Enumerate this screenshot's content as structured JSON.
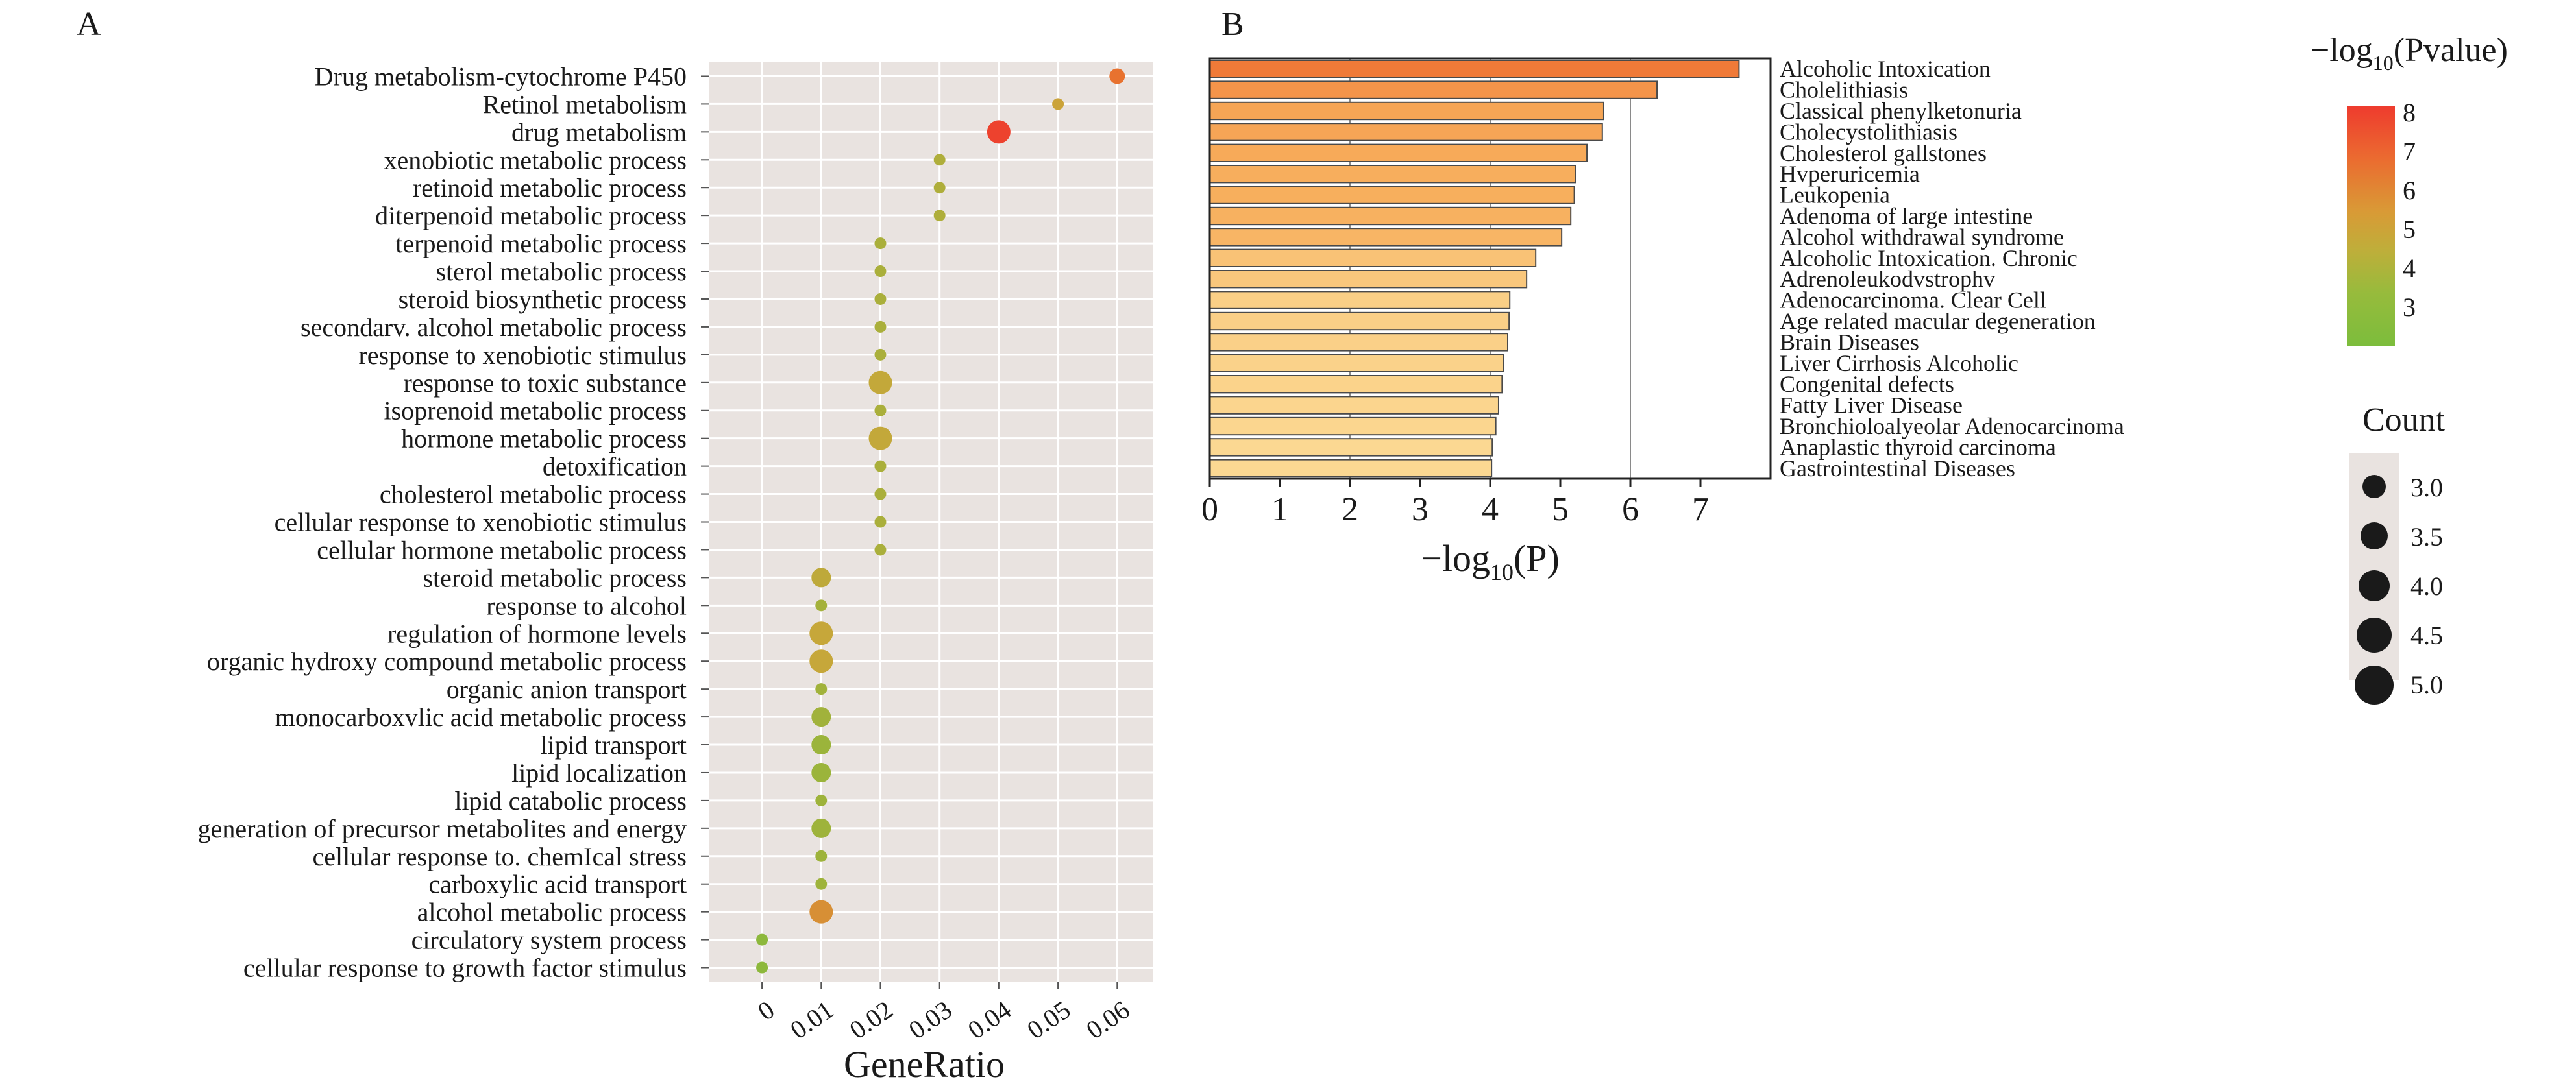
{
  "panels": {
    "a_letter": "A",
    "b_letter": "B"
  },
  "colors": {
    "panel_bg": "#e9e3e0",
    "grid": "#ffffff",
    "low": "#7cbd3c",
    "mid": "#c9a63a",
    "high": "#ee3b2e",
    "bar_high": "#f07a38",
    "bar_mid": "#f7ad5b",
    "bar_low": "#fbd892",
    "bar_edge": "#4a4a4a"
  },
  "chart_data": [
    {
      "type": "scatter",
      "panel": "A",
      "xlabel": "GeneRatio",
      "ylabel": "",
      "xlim": [
        -0.009,
        0.066
      ],
      "xticks": [
        0,
        0.01,
        0.02,
        0.03,
        0.04,
        0.05,
        0.06
      ],
      "xtick_labels": [
        "0",
        "0.01",
        "0.02",
        "0.03",
        "0.04",
        "0.05",
        "0.06"
      ],
      "grid": true,
      "categories": [
        "Drug metabolism-cytochrome P450",
        "Retinol metabolism",
        "drug metabolism",
        "xenobiotic metabolic process",
        "retinoid metabolic process",
        "diterpenoid metabolic process",
        "terpenoid metabolic process",
        "sterol metabolic process",
        "steroid biosynthetic process",
        "secondarv. alcohol metabolic process",
        "response to xenobiotic stimulus",
        "response to toxic substance",
        "isoprenoid metabolic process",
        "hormone metabolic process",
        "detoxification",
        "cholesterol metabolic process",
        "cellular response to xenobiotic stimulus",
        "cellular hormone metabolic process",
        "steroid metabolic process",
        "response to alcohol",
        "regulation of hormone levels",
        "organic hydroxy compound metabolic process",
        "organic anion transport",
        "monocarboxvlic acid metabolic process",
        "lipid transport",
        "lipid localization",
        "lipid catabolic process",
        "generation of precursor metabolites and energy",
        "cellular response to. chemIcal stress",
        "carboxylic acid transport",
        "alcohol metabolic process",
        "circulatory system process",
        "cellular response to growth factor stimulus"
      ],
      "x": [
        0.06,
        0.05,
        0.04,
        0.03,
        0.03,
        0.03,
        0.02,
        0.02,
        0.02,
        0.02,
        0.02,
        0.02,
        0.02,
        0.02,
        0.02,
        0.02,
        0.02,
        0.02,
        0.01,
        0.01,
        0.01,
        0.01,
        0.01,
        0.01,
        0.01,
        0.01,
        0.01,
        0.01,
        0.01,
        0.01,
        0.01,
        0.0,
        0.0
      ],
      "neglog10_pvalue": [
        6.5,
        4.8,
        7.8,
        3.8,
        3.8,
        3.8,
        3.6,
        3.6,
        3.6,
        3.6,
        3.6,
        4.5,
        3.6,
        4.5,
        3.6,
        3.6,
        3.6,
        3.6,
        4.3,
        3.4,
        4.6,
        4.6,
        3.3,
        3.3,
        3.1,
        3.1,
        3.2,
        3.2,
        3.2,
        3.2,
        5.5,
        2.6,
        2.6
      ],
      "count": [
        3.5,
        3.0,
        4.5,
        3.0,
        3.0,
        3.0,
        3.0,
        3.0,
        3.0,
        3.0,
        3.0,
        4.5,
        3.0,
        4.5,
        3.0,
        3.0,
        3.0,
        3.0,
        4.0,
        3.0,
        4.5,
        4.5,
        3.0,
        4.0,
        4.0,
        4.0,
        3.0,
        4.0,
        3.0,
        3.0,
        4.5,
        3.0,
        3.0
      ],
      "color_legend": {
        "title_prefix": "−log",
        "title_sub": "10",
        "title_suffix": "(Pvalue)",
        "ticks": [
          "8",
          "7",
          "6",
          "5",
          "4",
          "3"
        ],
        "range": [
          2,
          8
        ]
      },
      "size_legend": {
        "title": "Count",
        "labels": [
          "3.0",
          "3.5",
          "4.0",
          "4.5",
          "5.0"
        ]
      }
    },
    {
      "type": "bar",
      "panel": "B",
      "orientation": "horizontal",
      "xlabel_prefix": "−log",
      "xlabel_sub": "10",
      "xlabel_suffix": "(P)",
      "xlim": [
        0,
        8
      ],
      "xticks": [
        "0",
        "1",
        "2",
        "3",
        "4",
        "5",
        "6",
        "7"
      ],
      "grid_x": [
        2,
        4,
        6
      ],
      "categories": [
        "Alcoholic Intoxication",
        "Cholelithiasis",
        "Classical phenylketonuria",
        "Cholecystolithiasis",
        "Cholesterol gallstones",
        "Hvperuricemia",
        "Leukopenia",
        "Adenoma of large intestine",
        "Alcohol withdrawal syndrome",
        "Alcoholic Intoxication. Chronic",
        "Adrenoleukodvstrophv",
        "Adenocarcinoma. Clear Cell",
        "Age related macular degeneration",
        "Brain Diseases",
        "Liver Cirrhosis Alcoholic",
        "Congenital defects",
        "Fatty Liver Disease",
        "Bronchioloalyeolar Adenocarcinoma",
        "Anaplastic thyroid carcinoma",
        "Gastrointestinal Diseases"
      ],
      "values": [
        7.55,
        6.38,
        5.62,
        5.6,
        5.38,
        5.22,
        5.2,
        5.15,
        5.02,
        4.65,
        4.52,
        4.28,
        4.27,
        4.25,
        4.19,
        4.17,
        4.12,
        4.08,
        4.03,
        4.02
      ]
    }
  ]
}
